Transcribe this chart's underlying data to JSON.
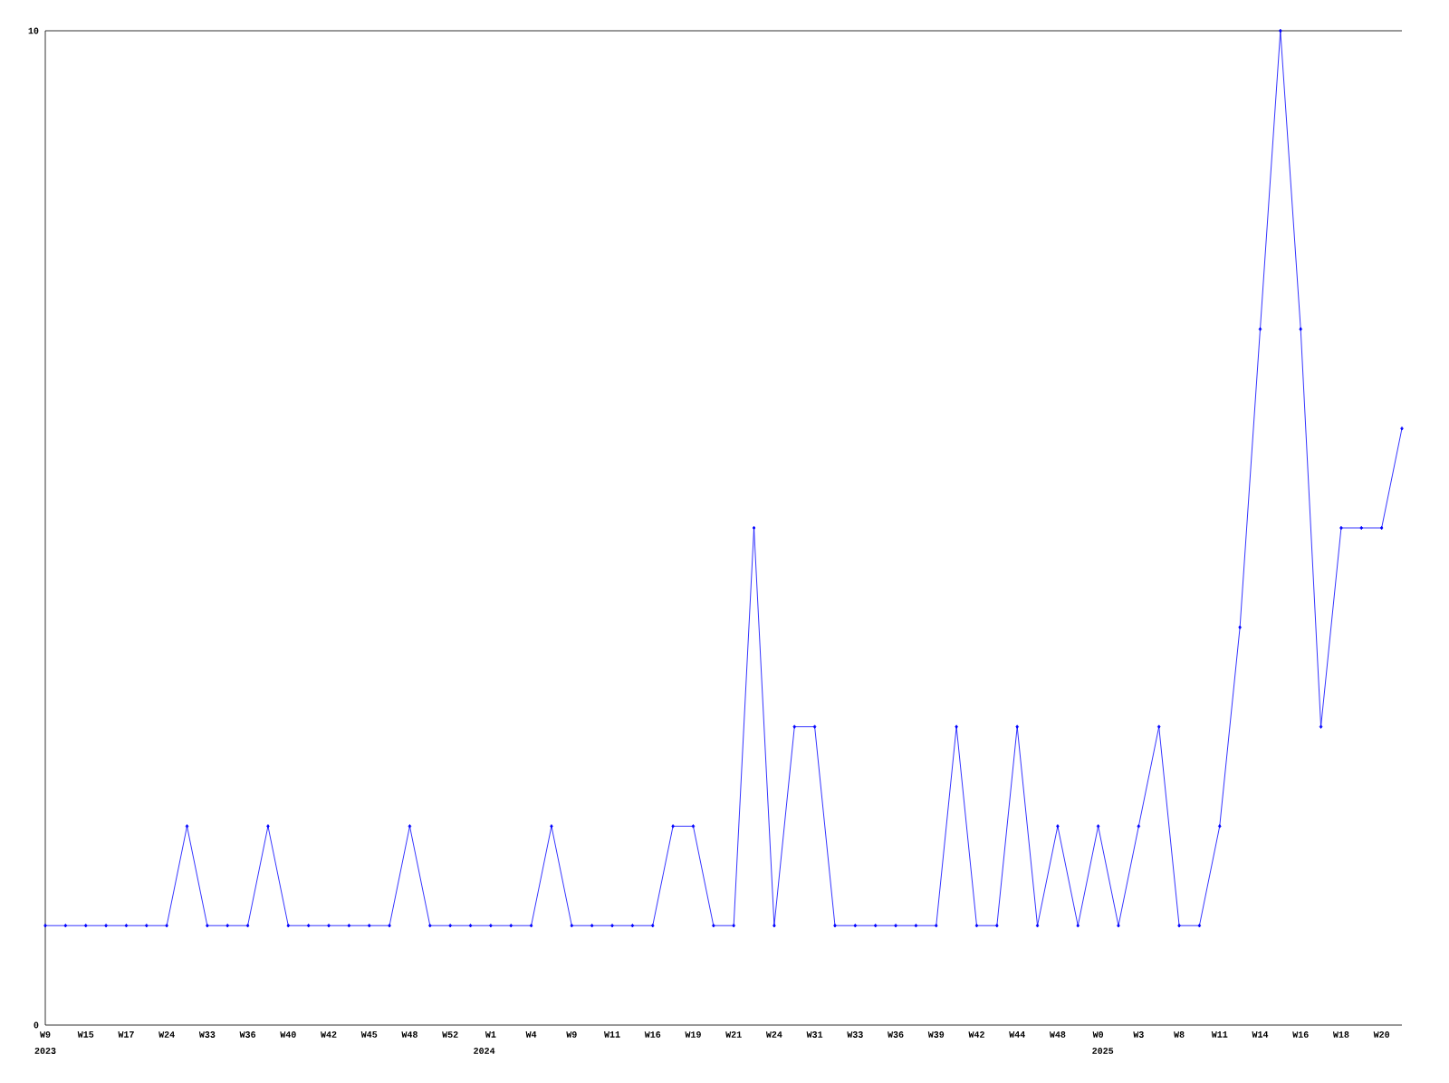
{
  "chart_data": {
    "type": "line",
    "categories": [
      "W9",
      null,
      "W15",
      null,
      "W17",
      null,
      "W24",
      null,
      "W33",
      null,
      "W36",
      null,
      "W40",
      null,
      "W42",
      null,
      "W45",
      null,
      "W48",
      null,
      "W52",
      null,
      "W1",
      null,
      "W4",
      null,
      "W9",
      null,
      "W11",
      null,
      "W16",
      null,
      "W19",
      null,
      "W21",
      null,
      "W24",
      null,
      "W31",
      null,
      "W33",
      null,
      "W36",
      null,
      "W39",
      null,
      "W42",
      null,
      "W44",
      null,
      "W48",
      null,
      "W0",
      null,
      "W3",
      null,
      "W8",
      null,
      "W11",
      null,
      "W14",
      null,
      "W16",
      null,
      "W18",
      null,
      "W20",
      null
    ],
    "series": [
      {
        "color": "#0000ff",
        "values": [
          1,
          1,
          1,
          1,
          1,
          1,
          1,
          2,
          1,
          1,
          1,
          2,
          1,
          1,
          1,
          1,
          1,
          1,
          2,
          1,
          1,
          1,
          1,
          1,
          1,
          2,
          1,
          1,
          1,
          1,
          1,
          2,
          2,
          1,
          1,
          5,
          1,
          3,
          3,
          1,
          1,
          1,
          1,
          1,
          1,
          3,
          1,
          1,
          3,
          1,
          2,
          1,
          2,
          1,
          2,
          3,
          1,
          1,
          2,
          4,
          7,
          10,
          7,
          3,
          5,
          5,
          5,
          6
        ]
      }
    ],
    "ylim": [
      0,
      10
    ],
    "yticks": [
      0,
      10
    ],
    "marker": "diamond",
    "line_style": "solid",
    "annotations": [
      "2023",
      "2024",
      "2025"
    ]
  }
}
